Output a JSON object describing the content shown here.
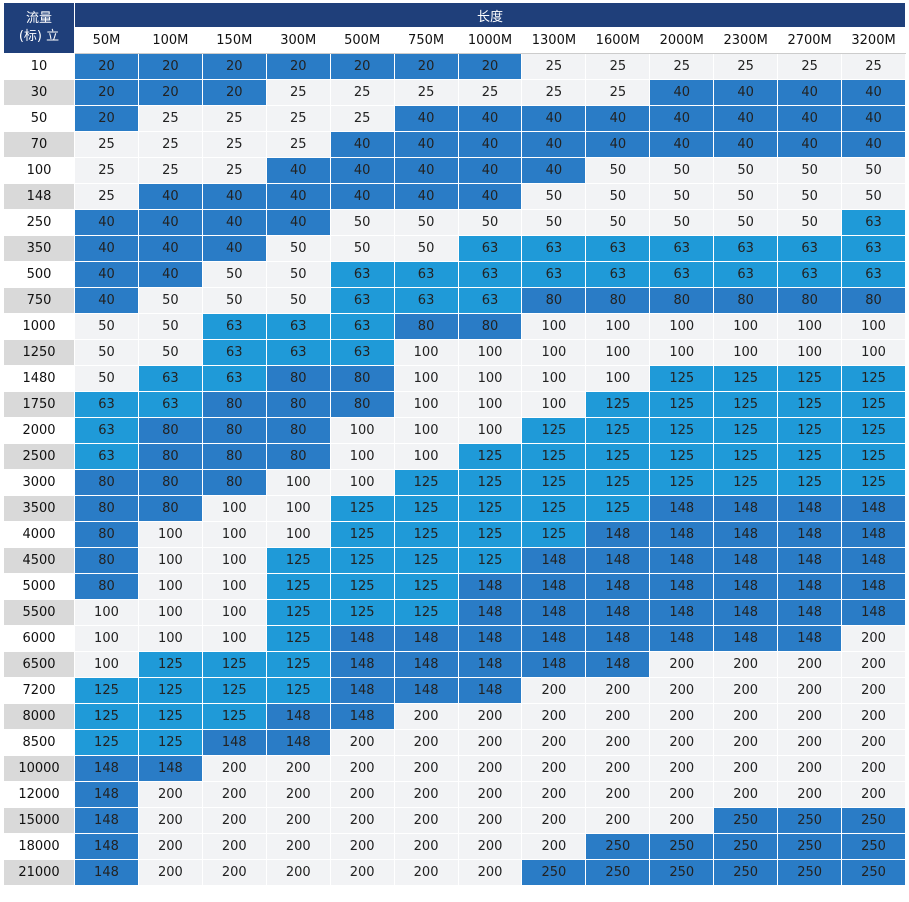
{
  "header": {
    "corner": [
      "流量",
      "(标) 立"
    ],
    "title": "长度"
  },
  "table": {
    "columns": [
      "50M",
      "100M",
      "150M",
      "300M",
      "500M",
      "750M",
      "1000M",
      "1300M",
      "1600M",
      "2000M",
      "2300M",
      "2700M",
      "3200M"
    ],
    "row_labels": [
      "10",
      "30",
      "50",
      "70",
      "100",
      "148",
      "250",
      "350",
      "500",
      "750",
      "1000",
      "1250",
      "1480",
      "1750",
      "2000",
      "2500",
      "3000",
      "3500",
      "4000",
      "4500",
      "5000",
      "5500",
      "6000",
      "6500",
      "7200",
      "8000",
      "8500",
      "10000",
      "12000",
      "15000",
      "18000",
      "21000"
    ],
    "rows": [
      [
        "20",
        "20",
        "20",
        "20",
        "20",
        "20",
        "20",
        "25",
        "25",
        "25",
        "25",
        "25",
        "25"
      ],
      [
        "20",
        "20",
        "20",
        "25",
        "25",
        "25",
        "25",
        "25",
        "25",
        "40",
        "40",
        "40",
        "40"
      ],
      [
        "20",
        "25",
        "25",
        "25",
        "25",
        "40",
        "40",
        "40",
        "40",
        "40",
        "40",
        "40",
        "40"
      ],
      [
        "25",
        "25",
        "25",
        "25",
        "40",
        "40",
        "40",
        "40",
        "40",
        "40",
        "40",
        "40",
        "40"
      ],
      [
        "25",
        "25",
        "25",
        "40",
        "40",
        "40",
        "40",
        "40",
        "50",
        "50",
        "50",
        "50",
        "50"
      ],
      [
        "25",
        "40",
        "40",
        "40",
        "40",
        "40",
        "40",
        "50",
        "50",
        "50",
        "50",
        "50",
        "50"
      ],
      [
        "40",
        "40",
        "40",
        "40",
        "50",
        "50",
        "50",
        "50",
        "50",
        "50",
        "50",
        "50",
        "63"
      ],
      [
        "40",
        "40",
        "40",
        "50",
        "50",
        "50",
        "63",
        "63",
        "63",
        "63",
        "63",
        "63",
        "63"
      ],
      [
        "40",
        "40",
        "50",
        "50",
        "63",
        "63",
        "63",
        "63",
        "63",
        "63",
        "63",
        "63",
        "63"
      ],
      [
        "40",
        "50",
        "50",
        "50",
        "63",
        "63",
        "63",
        "80",
        "80",
        "80",
        "80",
        "80",
        "80"
      ],
      [
        "50",
        "50",
        "63",
        "63",
        "63",
        "80",
        "80",
        "100",
        "100",
        "100",
        "100",
        "100",
        "100"
      ],
      [
        "50",
        "50",
        "63",
        "63",
        "63",
        "100",
        "100",
        "100",
        "100",
        "100",
        "100",
        "100",
        "100"
      ],
      [
        "50",
        "63",
        "63",
        "80",
        "80",
        "100",
        "100",
        "100",
        "100",
        "125",
        "125",
        "125",
        "125"
      ],
      [
        "63",
        "63",
        "80",
        "80",
        "80",
        "100",
        "100",
        "100",
        "125",
        "125",
        "125",
        "125",
        "125"
      ],
      [
        "63",
        "80",
        "80",
        "80",
        "100",
        "100",
        "100",
        "125",
        "125",
        "125",
        "125",
        "125",
        "125"
      ],
      [
        "63",
        "80",
        "80",
        "80",
        "100",
        "100",
        "125",
        "125",
        "125",
        "125",
        "125",
        "125",
        "125"
      ],
      [
        "80",
        "80",
        "80",
        "100",
        "100",
        "125",
        "125",
        "125",
        "125",
        "125",
        "125",
        "125",
        "125"
      ],
      [
        "80",
        "80",
        "100",
        "100",
        "125",
        "125",
        "125",
        "125",
        "125",
        "148",
        "148",
        "148",
        "148"
      ],
      [
        "80",
        "100",
        "100",
        "100",
        "125",
        "125",
        "125",
        "125",
        "148",
        "148",
        "148",
        "148",
        "148"
      ],
      [
        "80",
        "100",
        "100",
        "125",
        "125",
        "125",
        "125",
        "148",
        "148",
        "148",
        "148",
        "148",
        "148"
      ],
      [
        "80",
        "100",
        "100",
        "125",
        "125",
        "125",
        "148",
        "148",
        "148",
        "148",
        "148",
        "148",
        "148"
      ],
      [
        "100",
        "100",
        "100",
        "125",
        "125",
        "125",
        "148",
        "148",
        "148",
        "148",
        "148",
        "148",
        "148"
      ],
      [
        "100",
        "100",
        "100",
        "125",
        "148",
        "148",
        "148",
        "148",
        "148",
        "148",
        "148",
        "148",
        "200"
      ],
      [
        "100",
        "125",
        "125",
        "125",
        "148",
        "148",
        "148",
        "148",
        "148",
        "200",
        "200",
        "200",
        "200"
      ],
      [
        "125",
        "125",
        "125",
        "125",
        "148",
        "148",
        "148",
        "200",
        "200",
        "200",
        "200",
        "200",
        "200"
      ],
      [
        "125",
        "125",
        "125",
        "148",
        "148",
        "200",
        "200",
        "200",
        "200",
        "200",
        "200",
        "200",
        "200"
      ],
      [
        "125",
        "125",
        "148",
        "148",
        "200",
        "200",
        "200",
        "200",
        "200",
        "200",
        "200",
        "200",
        "200"
      ],
      [
        "148",
        "148",
        "200",
        "200",
        "200",
        "200",
        "200",
        "200",
        "200",
        "200",
        "200",
        "200",
        "200"
      ],
      [
        "148",
        "200",
        "200",
        "200",
        "200",
        "200",
        "200",
        "200",
        "200",
        "200",
        "200",
        "200",
        "200"
      ],
      [
        "148",
        "200",
        "200",
        "200",
        "200",
        "200",
        "200",
        "200",
        "200",
        "200",
        "250",
        "250",
        "250"
      ],
      [
        "148",
        "200",
        "200",
        "200",
        "200",
        "200",
        "200",
        "200",
        "250",
        "250",
        "250",
        "250",
        "250"
      ],
      [
        "148",
        "200",
        "200",
        "200",
        "200",
        "200",
        "200",
        "250",
        "250",
        "250",
        "250",
        "250",
        "250"
      ]
    ],
    "cell_colors": {
      "20": "#2a7cc6",
      "25": "#f2f3f5",
      "40": "#2a7cc6",
      "50": "#f2f3f5",
      "63": "#1f9ad8",
      "80": "#2a7cc6",
      "100": "#f2f3f5",
      "125": "#1f9ad8",
      "148": "#2a7cc6",
      "200": "#f2f3f5",
      "250": "#2a7cc6"
    },
    "row_label_colors": [
      "#ffffff",
      "#d9d9d9"
    ]
  }
}
